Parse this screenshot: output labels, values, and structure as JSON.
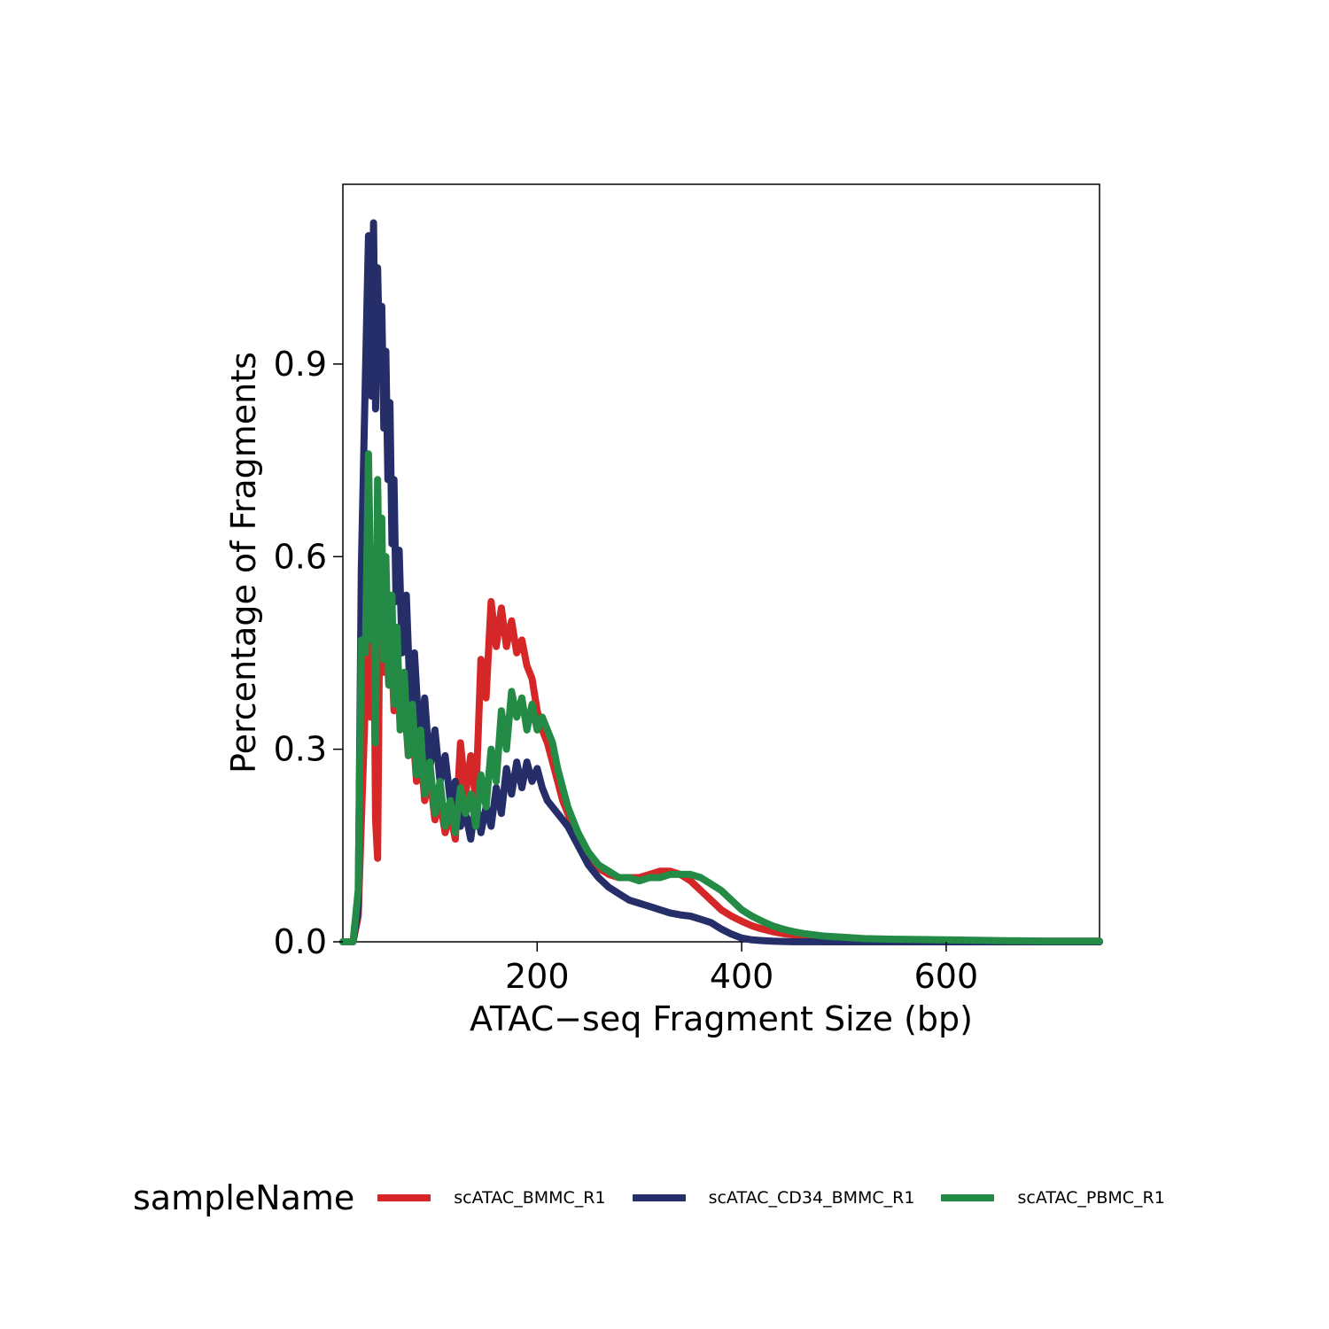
{
  "chart_data": {
    "type": "line",
    "xlabel": "ATAC−seq Fragment Size (bp)",
    "ylabel": "Percentage of Fragments",
    "xlim": [
      10,
      750
    ],
    "ylim": [
      0,
      1.18
    ],
    "x_ticks": [
      200,
      400,
      600
    ],
    "x_tick_labels": [
      "200",
      "400",
      "600"
    ],
    "y_ticks": [
      0,
      0.3,
      0.6,
      0.9
    ],
    "y_tick_labels": [
      "0.0",
      "0.3",
      "0.6",
      "0.9"
    ],
    "grid": false,
    "legend": {
      "title": "sampleName",
      "position": "bottom"
    },
    "series": [
      {
        "name": "scATAC_BMMC_R1",
        "color": "#d62728",
        "x": [
          10,
          20,
          25,
          30,
          34,
          37,
          40,
          42,
          44,
          46,
          48,
          50,
          52,
          55,
          58,
          60,
          63,
          66,
          70,
          74,
          78,
          82,
          86,
          90,
          95,
          100,
          105,
          110,
          115,
          120,
          125,
          130,
          135,
          140,
          145,
          150,
          155,
          160,
          165,
          170,
          175,
          180,
          185,
          190,
          195,
          200,
          205,
          210,
          215,
          220,
          225,
          230,
          240,
          250,
          260,
          270,
          280,
          290,
          300,
          310,
          320,
          330,
          340,
          350,
          360,
          370,
          380,
          390,
          400,
          410,
          420,
          430,
          440,
          450,
          460,
          480,
          500,
          520,
          550,
          600,
          650,
          700,
          750
        ],
        "y": [
          0,
          0,
          0.04,
          0.28,
          0.47,
          0.35,
          0.56,
          0.19,
          0.13,
          0.5,
          0.55,
          0.42,
          0.48,
          0.4,
          0.44,
          0.36,
          0.42,
          0.34,
          0.38,
          0.29,
          0.34,
          0.25,
          0.3,
          0.22,
          0.26,
          0.19,
          0.22,
          0.17,
          0.2,
          0.16,
          0.31,
          0.23,
          0.29,
          0.22,
          0.44,
          0.38,
          0.53,
          0.46,
          0.52,
          0.46,
          0.5,
          0.45,
          0.47,
          0.43,
          0.41,
          0.36,
          0.33,
          0.31,
          0.28,
          0.25,
          0.22,
          0.2,
          0.16,
          0.13,
          0.115,
          0.105,
          0.1,
          0.1,
          0.1,
          0.105,
          0.11,
          0.11,
          0.105,
          0.095,
          0.08,
          0.065,
          0.05,
          0.04,
          0.032,
          0.025,
          0.02,
          0.016,
          0.013,
          0.011,
          0.009,
          0.007,
          0.005,
          0.004,
          0.003,
          0.002,
          0.001,
          0.001,
          0.001
        ]
      },
      {
        "name": "scATAC_CD34_BMMC_R1",
        "color": "#262e6a",
        "x": [
          10,
          20,
          25,
          28,
          32,
          35,
          38,
          40,
          42,
          44,
          46,
          48,
          50,
          52,
          54,
          56,
          58,
          60,
          62,
          65,
          68,
          72,
          76,
          80,
          85,
          90,
          95,
          100,
          105,
          110,
          115,
          120,
          125,
          130,
          135,
          140,
          145,
          150,
          155,
          160,
          165,
          170,
          175,
          180,
          185,
          190,
          195,
          200,
          205,
          210,
          220,
          230,
          240,
          250,
          260,
          270,
          280,
          290,
          300,
          310,
          320,
          330,
          340,
          350,
          360,
          370,
          380,
          390,
          400,
          410,
          420,
          430,
          440,
          450,
          500,
          600,
          750
        ],
        "y": [
          0,
          0,
          0.05,
          0.58,
          0.88,
          1.1,
          0.85,
          1.12,
          0.83,
          1.05,
          0.9,
          0.99,
          0.8,
          0.92,
          0.72,
          0.84,
          0.62,
          0.72,
          0.53,
          0.61,
          0.45,
          0.54,
          0.37,
          0.45,
          0.31,
          0.38,
          0.27,
          0.33,
          0.25,
          0.29,
          0.22,
          0.25,
          0.18,
          0.2,
          0.16,
          0.22,
          0.17,
          0.21,
          0.18,
          0.24,
          0.2,
          0.27,
          0.23,
          0.28,
          0.24,
          0.28,
          0.25,
          0.27,
          0.24,
          0.22,
          0.2,
          0.18,
          0.15,
          0.12,
          0.1,
          0.085,
          0.075,
          0.065,
          0.06,
          0.055,
          0.05,
          0.045,
          0.042,
          0.04,
          0.035,
          0.03,
          0.02,
          0.012,
          0.006,
          0.003,
          0.002,
          0.001,
          0.0005,
          0.0002,
          0,
          0,
          0
        ]
      },
      {
        "name": "scATAC_PBMC_R1",
        "color": "#238b45",
        "x": [
          10,
          20,
          25,
          28,
          32,
          35,
          38,
          40,
          42,
          44,
          46,
          48,
          50,
          52,
          55,
          58,
          60,
          63,
          66,
          70,
          74,
          78,
          82,
          86,
          90,
          95,
          100,
          105,
          110,
          115,
          120,
          125,
          130,
          135,
          140,
          145,
          150,
          155,
          160,
          165,
          170,
          175,
          180,
          185,
          190,
          195,
          200,
          205,
          210,
          215,
          220,
          225,
          230,
          240,
          250,
          260,
          270,
          280,
          290,
          300,
          310,
          320,
          330,
          340,
          350,
          360,
          370,
          380,
          390,
          400,
          410,
          420,
          430,
          440,
          450,
          460,
          480,
          500,
          520,
          550,
          600,
          650,
          700,
          750
        ],
        "y": [
          0,
          0,
          0.08,
          0.47,
          0.45,
          0.76,
          0.47,
          0.6,
          0.31,
          0.72,
          0.5,
          0.66,
          0.44,
          0.6,
          0.4,
          0.54,
          0.37,
          0.49,
          0.33,
          0.42,
          0.29,
          0.37,
          0.26,
          0.33,
          0.23,
          0.28,
          0.2,
          0.25,
          0.18,
          0.22,
          0.17,
          0.24,
          0.2,
          0.23,
          0.18,
          0.26,
          0.21,
          0.3,
          0.25,
          0.36,
          0.3,
          0.39,
          0.35,
          0.38,
          0.33,
          0.37,
          0.33,
          0.35,
          0.33,
          0.31,
          0.27,
          0.24,
          0.21,
          0.17,
          0.14,
          0.12,
          0.11,
          0.1,
          0.1,
          0.095,
          0.1,
          0.1,
          0.105,
          0.105,
          0.105,
          0.1,
          0.09,
          0.08,
          0.065,
          0.05,
          0.04,
          0.032,
          0.025,
          0.02,
          0.016,
          0.013,
          0.009,
          0.007,
          0.005,
          0.004,
          0.003,
          0.002,
          0.001,
          0.001
        ]
      }
    ]
  }
}
